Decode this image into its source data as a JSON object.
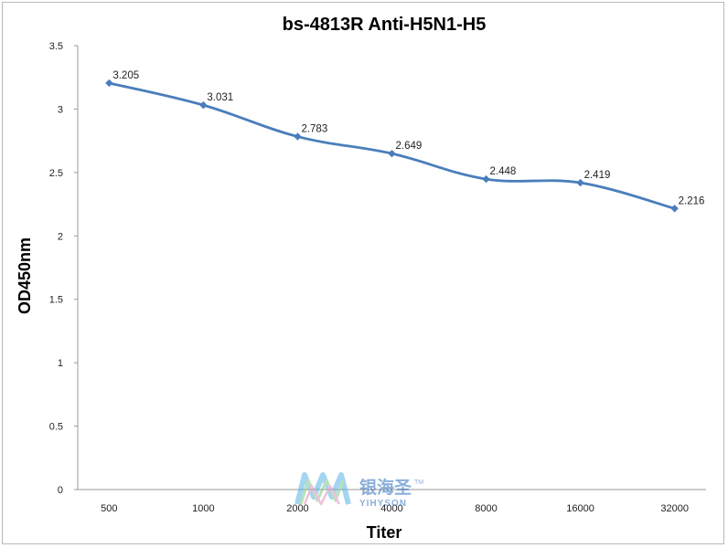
{
  "chart_data": {
    "type": "line",
    "title": "bs-4813R Anti-H5N1-H5",
    "xlabel": "Titer",
    "ylabel": "OD450nm",
    "categories": [
      "500",
      "1000",
      "2000",
      "4000",
      "8000",
      "16000",
      "32000"
    ],
    "series": [
      {
        "values": [
          3.205,
          3.031,
          2.783,
          2.649,
          2.448,
          2.419,
          2.216
        ],
        "data_labels": [
          "3.205",
          "3.031",
          "2.783",
          "2.649",
          "2.448",
          "2.419",
          "2.216"
        ],
        "color": "#4a7ebb",
        "marker": "diamond"
      }
    ],
    "ylim": [
      0,
      3.5
    ],
    "yticks": [
      "0",
      "0.5",
      "1",
      "1.5",
      "2",
      "2.5",
      "3",
      "3.5"
    ],
    "grid": false,
    "legend": "none"
  },
  "watermark": {
    "brand_cn": "银海圣",
    "brand_en": "YIHYSON",
    "trademark": "TM"
  }
}
